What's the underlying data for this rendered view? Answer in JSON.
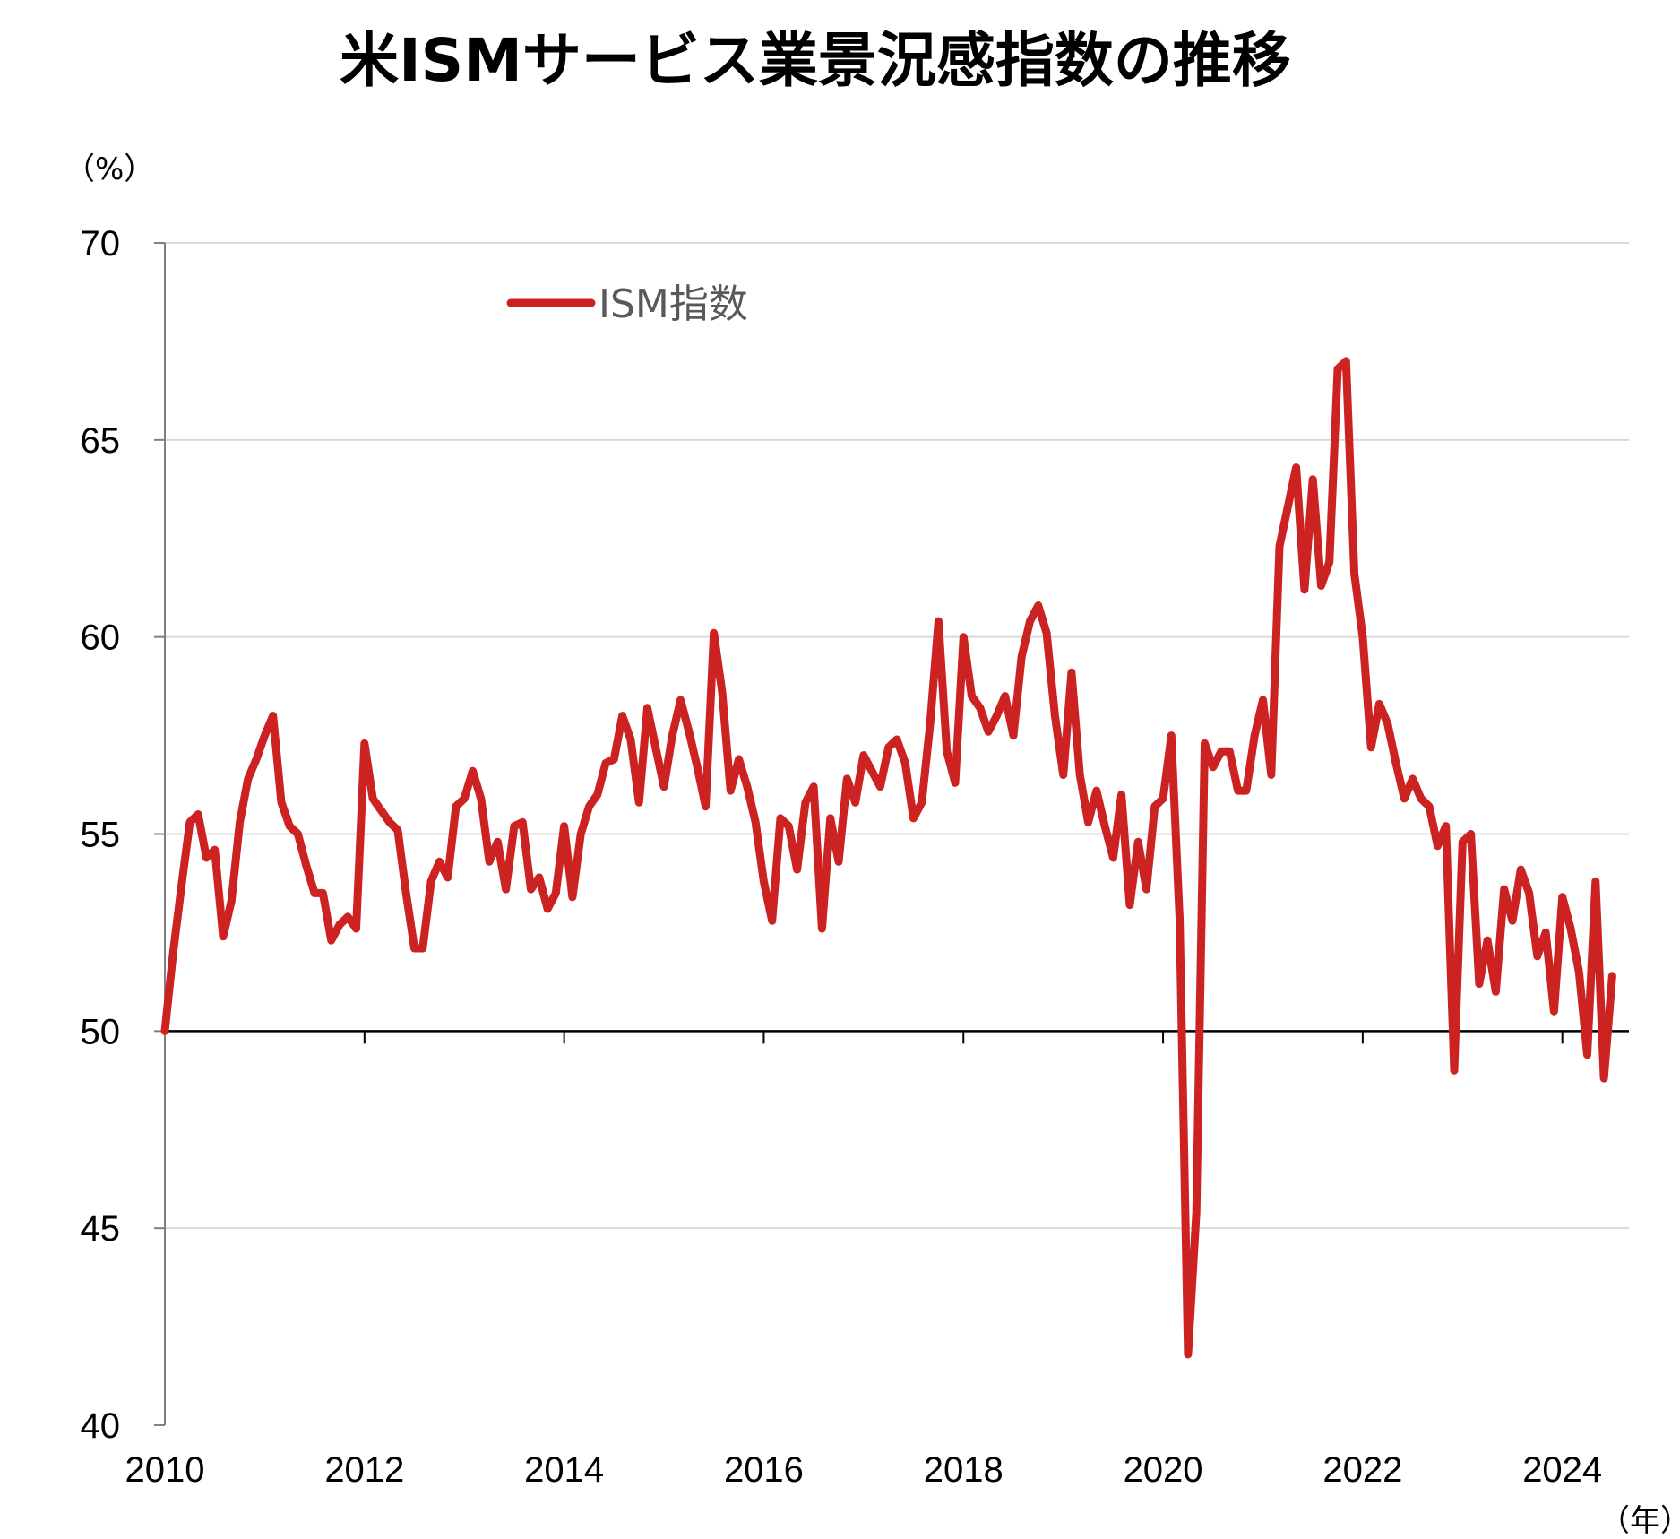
{
  "chart_data": {
    "type": "line",
    "title": "米ISMサービス業景況感指数の推移",
    "ylabel": "（%）",
    "xlabel": "（年）",
    "ylim": [
      40,
      70
    ],
    "yticks": [
      40,
      45,
      50,
      55,
      60,
      65,
      70
    ],
    "xlim": [
      2010,
      2024.667
    ],
    "xticks": [
      2010,
      2012,
      2014,
      2016,
      2018,
      2020,
      2022,
      2024
    ],
    "grid": true,
    "reference_line": 50,
    "legend": {
      "placement": "top-left"
    },
    "series": [
      {
        "name": "ISM指数",
        "color": "#cc2222",
        "start": "2010-01",
        "frequency": "monthly",
        "values": [
          50.0,
          52.0,
          53.7,
          55.3,
          55.5,
          54.4,
          54.6,
          52.4,
          53.3,
          55.3,
          56.4,
          56.9,
          57.5,
          58.0,
          55.8,
          55.2,
          55.0,
          54.2,
          53.5,
          53.5,
          52.3,
          52.7,
          52.9,
          52.6,
          57.3,
          55.9,
          55.6,
          55.3,
          55.1,
          53.5,
          52.1,
          52.1,
          53.8,
          54.3,
          53.9,
          55.7,
          55.9,
          56.6,
          55.9,
          54.3,
          54.8,
          53.6,
          55.2,
          55.3,
          53.6,
          53.9,
          53.1,
          53.5,
          55.2,
          53.4,
          55.0,
          55.7,
          56.0,
          56.8,
          56.9,
          58.0,
          57.4,
          55.8,
          58.2,
          57.2,
          56.2,
          57.5,
          58.4,
          57.6,
          56.7,
          55.7,
          60.1,
          58.6,
          56.1,
          56.9,
          56.2,
          55.3,
          53.8,
          52.8,
          55.4,
          55.2,
          54.1,
          55.8,
          56.2,
          52.6,
          55.4,
          54.3,
          56.4,
          55.8,
          57.0,
          56.6,
          56.2,
          57.2,
          57.4,
          56.8,
          55.4,
          55.8,
          57.8,
          60.4,
          57.1,
          56.3,
          60.0,
          58.5,
          58.2,
          57.6,
          58.0,
          58.5,
          57.5,
          59.5,
          60.4,
          60.8,
          60.1,
          58.0,
          56.5,
          59.1,
          56.5,
          55.3,
          56.1,
          55.2,
          54.4,
          56.0,
          53.2,
          54.8,
          53.6,
          55.7,
          55.9,
          57.5,
          52.8,
          41.8,
          45.4,
          57.3,
          56.7,
          57.1,
          57.1,
          56.1,
          56.1,
          57.5,
          58.4,
          56.5,
          62.3,
          63.3,
          64.3,
          61.2,
          64.0,
          61.3,
          61.9,
          66.8,
          67.0,
          61.6,
          60.0,
          57.2,
          58.3,
          57.8,
          56.8,
          55.9,
          56.4,
          55.9,
          55.7,
          54.7,
          55.2,
          49.0,
          54.8,
          55.0,
          51.2,
          52.3,
          51.0,
          53.6,
          52.8,
          54.1,
          53.5,
          51.9,
          52.5,
          50.5,
          53.4,
          52.6,
          51.5,
          49.4,
          53.8,
          48.8,
          51.4
        ]
      }
    ]
  }
}
